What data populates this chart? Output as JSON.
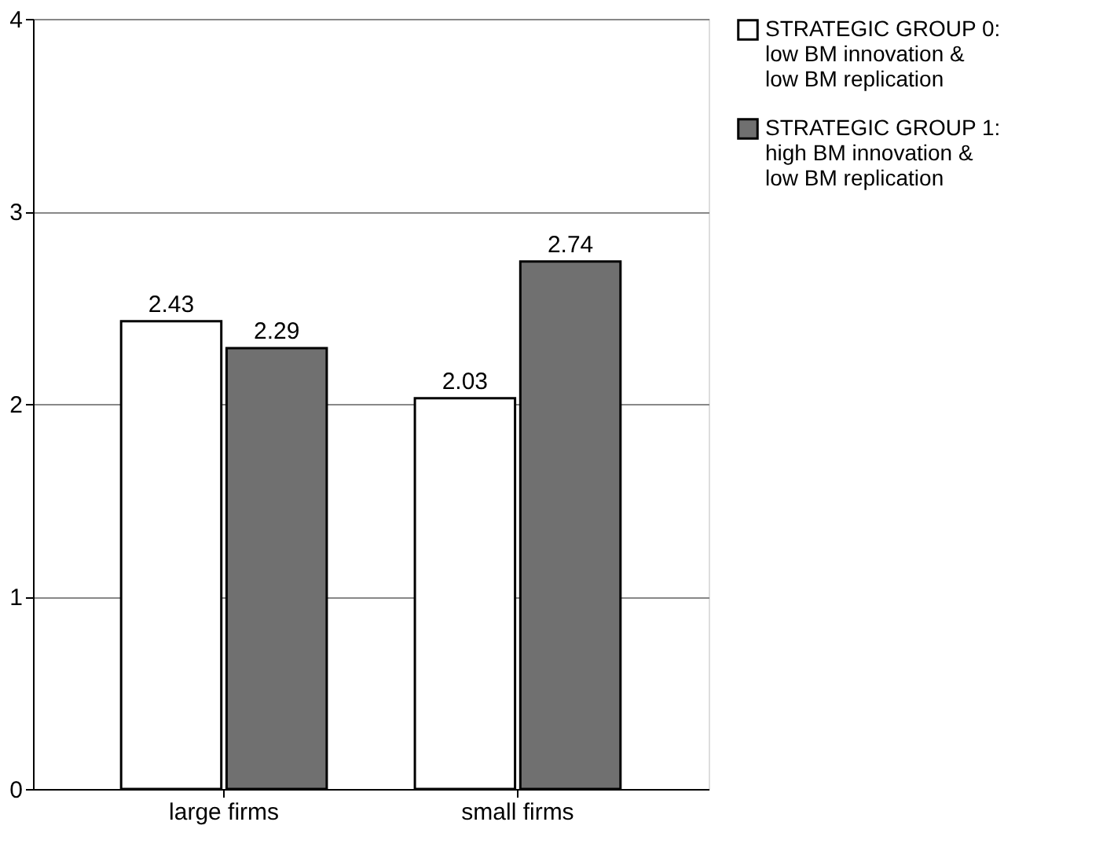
{
  "chart_data": {
    "type": "bar",
    "categories": [
      "large firms",
      "small firms"
    ],
    "series": [
      {
        "name": "STRATEGIC GROUP 0: low BM innovation & low BM replication",
        "color": "#ffffff",
        "values": [
          2.43,
          2.03
        ]
      },
      {
        "name": "STRATEGIC GROUP 1: high BM innovation & low BM replication",
        "color": "#707070",
        "values": [
          2.29,
          2.74
        ]
      }
    ],
    "ylim": [
      0,
      4
    ],
    "yticks": [
      0,
      1,
      2,
      3,
      4
    ],
    "grid": "y",
    "legend": "right",
    "data_labels": true
  }
}
